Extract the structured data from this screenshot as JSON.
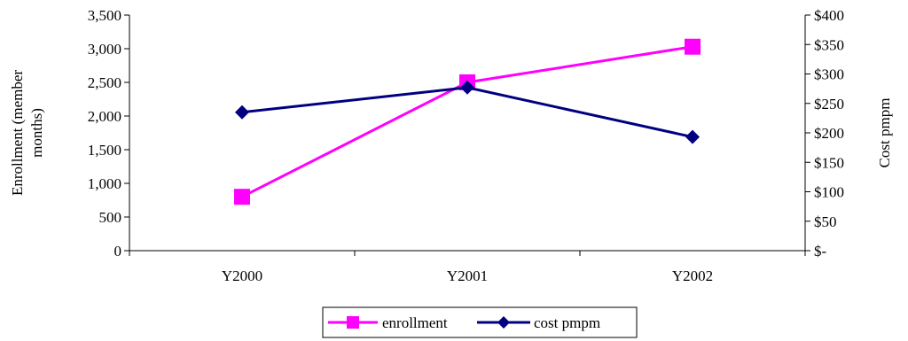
{
  "chart_data": {
    "type": "line",
    "title": "",
    "categories": [
      "Y2000",
      "Y2001",
      "Y2002"
    ],
    "y_left": {
      "label_lines": [
        "Enrollment (member",
        "months)"
      ],
      "ylim": [
        0,
        3500
      ],
      "ticks": [
        0,
        500,
        1000,
        1500,
        2000,
        2500,
        3000,
        3500
      ],
      "tick_labels": [
        "0",
        "500",
        "1,000",
        "1,500",
        "2,000",
        "2,500",
        "3,000",
        "3,500"
      ]
    },
    "y_right": {
      "label": "Cost pmpm",
      "ylim": [
        0,
        400
      ],
      "ticks": [
        0,
        50,
        100,
        150,
        200,
        250,
        300,
        350,
        400
      ],
      "tick_labels": [
        "$-",
        "$50",
        "$100",
        "$150",
        "$200",
        "$250",
        "$300",
        "$350",
        "$400"
      ]
    },
    "series": [
      {
        "name": "enrollment",
        "axis": "left",
        "color": "#ff00ff",
        "marker": "square",
        "values": [
          800,
          2500,
          3030
        ]
      },
      {
        "name": "cost pmpm",
        "axis": "right",
        "color": "#000080",
        "marker": "diamond",
        "values": [
          235,
          277,
          193
        ]
      }
    ],
    "grid": false,
    "legend": "bottom-center"
  }
}
